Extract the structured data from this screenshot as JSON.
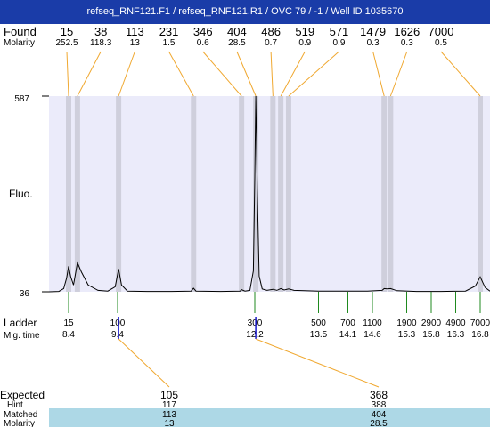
{
  "title": "refseq_RNF121.F1 / refseq_RNF121.R1 / OVC 79 / -1 / Well ID 1035670",
  "labels": {
    "found": "Found",
    "molarity": "Molarity",
    "fluo": "Fluo.",
    "ladder": "Ladder",
    "mig_time": "Mig. time",
    "expected": "Expected",
    "hint": "Hint",
    "matched": "Matched",
    "molarity_row": "Molarity"
  },
  "colors": {
    "title_bg": "#1a3ca8",
    "plot_bg": "#ebebfa",
    "band": "#cfcfdc",
    "connector": "#f0a830",
    "ladder_tick": "#1f8a1f",
    "marker": "#1a1acc",
    "matched_bg": "#add8e6"
  },
  "chart_data": {
    "type": "line",
    "x_axis": "migration time",
    "ylim": [
      36,
      587
    ],
    "y_ticks": [
      "587",
      "36"
    ],
    "found_peaks": [
      {
        "size": "15",
        "molarity": "252.5",
        "time": 8.4
      },
      {
        "size": "38",
        "molarity": "118.3",
        "time": 8.58
      },
      {
        "size": "113",
        "molarity": "13",
        "time": 9.42
      },
      {
        "size": "231",
        "molarity": "1.5",
        "time": 10.95
      },
      {
        "size": "346",
        "molarity": "0.6",
        "time": 11.93
      },
      {
        "size": "404",
        "molarity": "28.5",
        "time": 12.22
      },
      {
        "size": "486",
        "molarity": "0.7",
        "time": 12.57
      },
      {
        "size": "519",
        "molarity": "0.9",
        "time": 12.73
      },
      {
        "size": "571",
        "molarity": "0.9",
        "time": 12.89
      },
      {
        "size": "1479",
        "molarity": "0.3",
        "time": 14.84
      },
      {
        "size": "1626",
        "molarity": "0.3",
        "time": 14.97
      },
      {
        "size": "7000",
        "molarity": "0.5",
        "time": 16.8
      }
    ],
    "ladder": [
      {
        "size": "15",
        "time": "8.4"
      },
      {
        "size": "100",
        "time": "9.4"
      },
      {
        "size": "300",
        "time": "12.2"
      },
      {
        "size": "500",
        "time": "13.5"
      },
      {
        "size": "700",
        "time": "14.1"
      },
      {
        "size": "1100",
        "time": "14.6"
      },
      {
        "size": "1900",
        "time": "15.3"
      },
      {
        "size": "2900",
        "time": "15.8"
      },
      {
        "size": "4900",
        "time": "16.3"
      },
      {
        "size": "7000",
        "time": "16.8"
      }
    ],
    "trace": [
      [
        8.0,
        36
      ],
      [
        8.2,
        37
      ],
      [
        8.3,
        45
      ],
      [
        8.36,
        75
      ],
      [
        8.4,
        108
      ],
      [
        8.44,
        80
      ],
      [
        8.5,
        55
      ],
      [
        8.58,
        118
      ],
      [
        8.66,
        92
      ],
      [
        8.8,
        55
      ],
      [
        9.0,
        40
      ],
      [
        9.2,
        38
      ],
      [
        9.35,
        50
      ],
      [
        9.42,
        100
      ],
      [
        9.48,
        55
      ],
      [
        9.6,
        38
      ],
      [
        10.0,
        37
      ],
      [
        10.5,
        37
      ],
      [
        10.9,
        38
      ],
      [
        10.95,
        46
      ],
      [
        11.0,
        38
      ],
      [
        11.5,
        37
      ],
      [
        11.9,
        38
      ],
      [
        11.93,
        42
      ],
      [
        12.0,
        38
      ],
      [
        12.1,
        40
      ],
      [
        12.17,
        95
      ],
      [
        12.2,
        360
      ],
      [
        12.22,
        587
      ],
      [
        12.25,
        320
      ],
      [
        12.29,
        80
      ],
      [
        12.35,
        44
      ],
      [
        12.45,
        40
      ],
      [
        12.57,
        43
      ],
      [
        12.65,
        40
      ],
      [
        12.73,
        45
      ],
      [
        12.8,
        41
      ],
      [
        12.89,
        44
      ],
      [
        13.0,
        40
      ],
      [
        13.5,
        38
      ],
      [
        14.0,
        38
      ],
      [
        14.5,
        38
      ],
      [
        14.8,
        40
      ],
      [
        14.84,
        45
      ],
      [
        14.9,
        44
      ],
      [
        14.97,
        45
      ],
      [
        15.1,
        39
      ],
      [
        15.5,
        37
      ],
      [
        16.0,
        37
      ],
      [
        16.5,
        38
      ],
      [
        16.7,
        52
      ],
      [
        16.8,
        78
      ],
      [
        16.9,
        48
      ],
      [
        17.0,
        38
      ]
    ],
    "expected": [
      {
        "expected": "105",
        "hint": "117",
        "matched": "113",
        "molarity": "13",
        "time": 9.42
      },
      {
        "expected": "368",
        "hint": "388",
        "matched": "404",
        "molarity": "28.5",
        "time": 12.22
      }
    ]
  }
}
